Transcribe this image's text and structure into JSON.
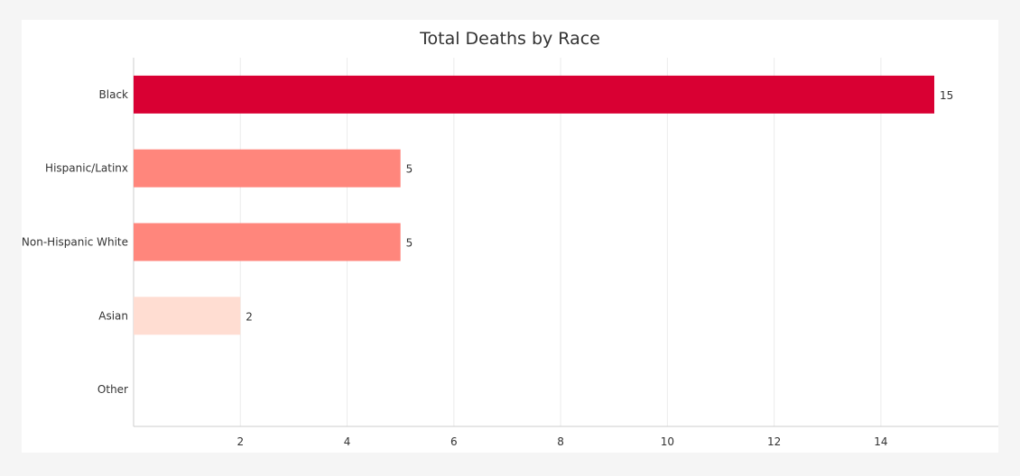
{
  "chart_data": {
    "type": "bar",
    "orientation": "horizontal",
    "title": "Total Deaths by Race",
    "xlabel": "",
    "ylabel": "",
    "categories": [
      "Black",
      "Hispanic/Latinx",
      "Non-Hispanic White",
      "Asian",
      "Other"
    ],
    "values": [
      15,
      5,
      5,
      2,
      0
    ],
    "data_labels": [
      "15",
      "5",
      "5",
      "2",
      ""
    ],
    "bar_colors": [
      "#d90033",
      "#ff867c",
      "#ff867c",
      "#ffddd2",
      "#ffddd2"
    ],
    "xlim": [
      0,
      16.2
    ],
    "xticks": [
      2,
      4,
      6,
      8,
      10,
      12,
      14
    ],
    "grid": true,
    "legend": "none"
  },
  "colors": {
    "background": "#f5f5f5",
    "panel": "#ffffff",
    "grid": "#ebebeb",
    "axis": "#cccccc",
    "text": "#333333"
  }
}
